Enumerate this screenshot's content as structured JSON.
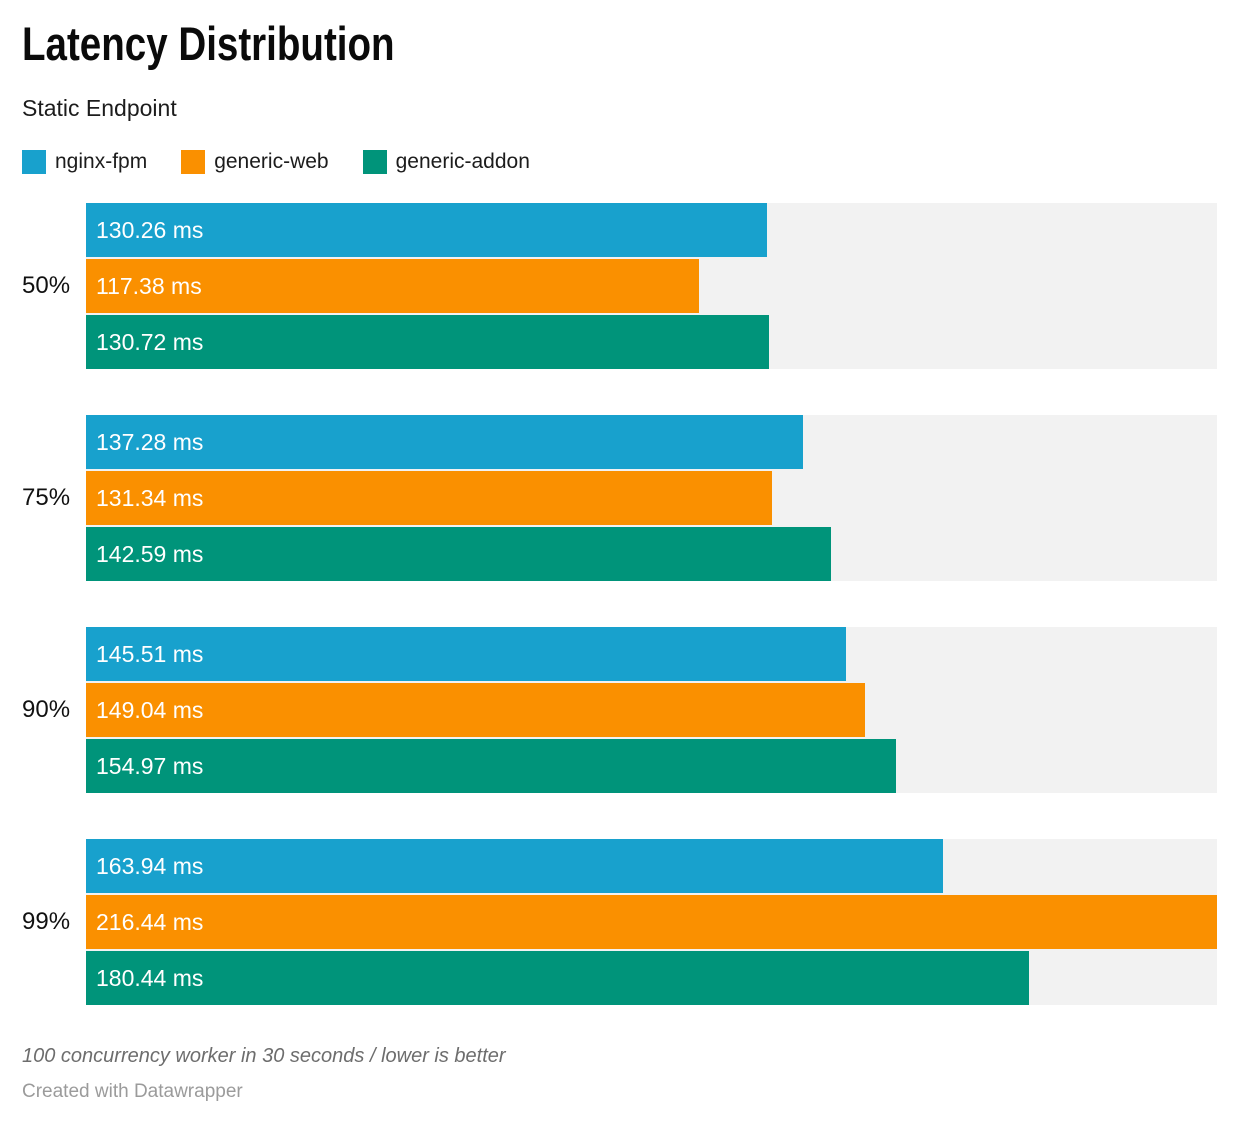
{
  "header": {
    "title": "Latency Distribution",
    "subtitle": "Static Endpoint"
  },
  "legend": [
    {
      "label": "nginx-fpm",
      "color": "#18a1cd"
    },
    {
      "label": "generic-web",
      "color": "#fa9000"
    },
    {
      "label": "generic-addon",
      "color": "#00947a"
    }
  ],
  "colors": {
    "track_background": "#f2f2f2",
    "bar_label_text": "#ffffff"
  },
  "chart_data": {
    "type": "bar",
    "orientation": "horizontal",
    "title": "Latency Distribution",
    "subtitle": "Static Endpoint",
    "categories": [
      "50%",
      "75%",
      "90%",
      "99%"
    ],
    "series": [
      {
        "name": "nginx-fpm",
        "color": "#18a1cd",
        "values": [
          130.26,
          137.28,
          145.51,
          163.94
        ]
      },
      {
        "name": "generic-web",
        "color": "#fa9000",
        "values": [
          117.38,
          131.34,
          149.04,
          216.44
        ]
      },
      {
        "name": "generic-addon",
        "color": "#00947a",
        "values": [
          130.72,
          142.59,
          154.97,
          180.44
        ]
      }
    ],
    "value_suffix": " ms",
    "value_decimals": 2,
    "xlim": [
      0,
      216.44
    ],
    "grid": false,
    "legend_position": "top",
    "axis_labels_shown": false
  },
  "footer": {
    "note": "100 concurrency worker in 30 seconds / lower is better",
    "attribution": "Created with Datawrapper"
  }
}
